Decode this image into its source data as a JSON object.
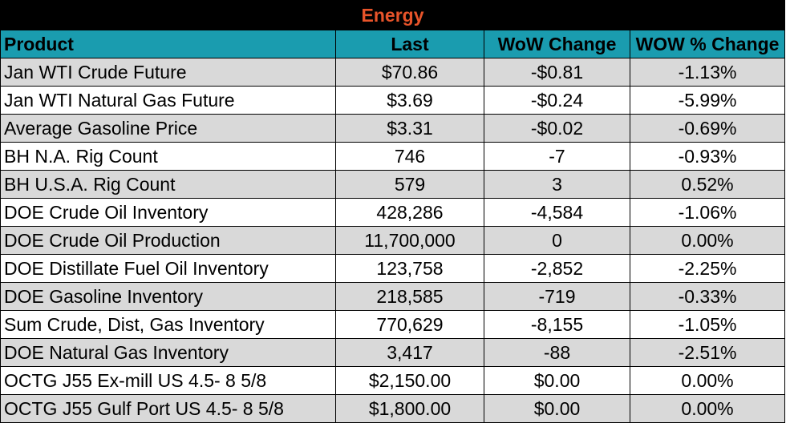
{
  "chart_data": {
    "type": "table",
    "title": "Energy",
    "columns": [
      "Product",
      "Last",
      "WoW Change",
      "WOW % Change"
    ],
    "rows": [
      [
        "Jan WTI Crude Future",
        "$70.86",
        "-$0.81",
        "-1.13%"
      ],
      [
        "Jan WTI Natural Gas Future",
        "$3.69",
        "-$0.24",
        "-5.99%"
      ],
      [
        "Average Gasoline Price",
        "$3.31",
        "-$0.02",
        "-0.69%"
      ],
      [
        "BH N.A. Rig Count",
        "746",
        "-7",
        "-0.93%"
      ],
      [
        "BH U.S.A. Rig Count",
        "579",
        "3",
        "0.52%"
      ],
      [
        "DOE Crude Oil Inventory",
        "428,286",
        "-4,584",
        "-1.06%"
      ],
      [
        "DOE Crude Oil Production",
        "11,700,000",
        "0",
        "0.00%"
      ],
      [
        "DOE Distillate Fuel Oil Inventory",
        "123,758",
        "-2,852",
        "-2.25%"
      ],
      [
        "DOE Gasoline Inventory",
        "218,585",
        "-719",
        "-0.33%"
      ],
      [
        "Sum Crude, Dist, Gas Inventory",
        "770,629",
        "-8,155",
        "-1.05%"
      ],
      [
        "DOE Natural Gas Inventory",
        "3,417",
        "-88",
        "-2.51%"
      ],
      [
        "OCTG J55 Ex-mill US 4.5- 8 5/8",
        "$2,150.00",
        "$0.00",
        "0.00%"
      ],
      [
        "OCTG J55 Gulf Port US 4.5- 8 5/8",
        "$1,800.00",
        "$0.00",
        "0.00%"
      ]
    ]
  },
  "colors": {
    "title_bg": "#000000",
    "title_text": "#e8542a",
    "header_bg": "#1a9caf",
    "row_shade": "#d9d9d9",
    "row_plain": "#ffffff"
  }
}
